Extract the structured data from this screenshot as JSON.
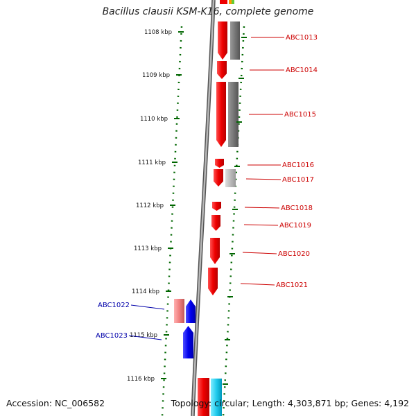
{
  "title": "Bacillus clausii KSM-K16, complete genome",
  "footer": {
    "accession": "Accession: NC_006582",
    "summary": "Topology: circular; Length: 4,303,871 bp; Genes: 4,192"
  },
  "scale": {
    "unit": "kbp",
    "ticks": [
      "1108 kbp",
      "1109 kbp",
      "1110 kbp",
      "1111 kbp",
      "1112 kbp",
      "1113 kbp",
      "1114 kbp",
      "1115 kbp",
      "1116 kbp"
    ]
  },
  "genes": [
    {
      "label": "ABC1013",
      "strand": "forward",
      "color": "#cc0000"
    },
    {
      "label": "ABC1014",
      "strand": "forward",
      "color": "#cc0000"
    },
    {
      "label": "ABC1015",
      "strand": "forward",
      "color": "#cc0000"
    },
    {
      "label": "ABC1016",
      "strand": "forward",
      "color": "#cc0000"
    },
    {
      "label": "ABC1017",
      "strand": "forward",
      "color": "#cc0000"
    },
    {
      "label": "ABC1018",
      "strand": "forward",
      "color": "#cc0000"
    },
    {
      "label": "ABC1019",
      "strand": "forward",
      "color": "#cc0000"
    },
    {
      "label": "ABC1020",
      "strand": "forward",
      "color": "#cc0000"
    },
    {
      "label": "ABC1021",
      "strand": "forward",
      "color": "#cc0000"
    },
    {
      "label": "ABC1022",
      "strand": "reverse",
      "color": "#0000aa"
    },
    {
      "label": "ABC1023",
      "strand": "reverse",
      "color": "#0000aa"
    }
  ],
  "colors": {
    "forward_cds": "#ee0000",
    "reverse_cds": "#0000ee",
    "backbone": "#888888",
    "tick": "#006600",
    "forward_label": "#cc0000",
    "reverse_label": "#0000aa",
    "feature_gray": "#777777",
    "feature_light_gray": "#bbbbbb",
    "feature_pink": "#f08080",
    "feature_cyan": "#22ccee"
  }
}
